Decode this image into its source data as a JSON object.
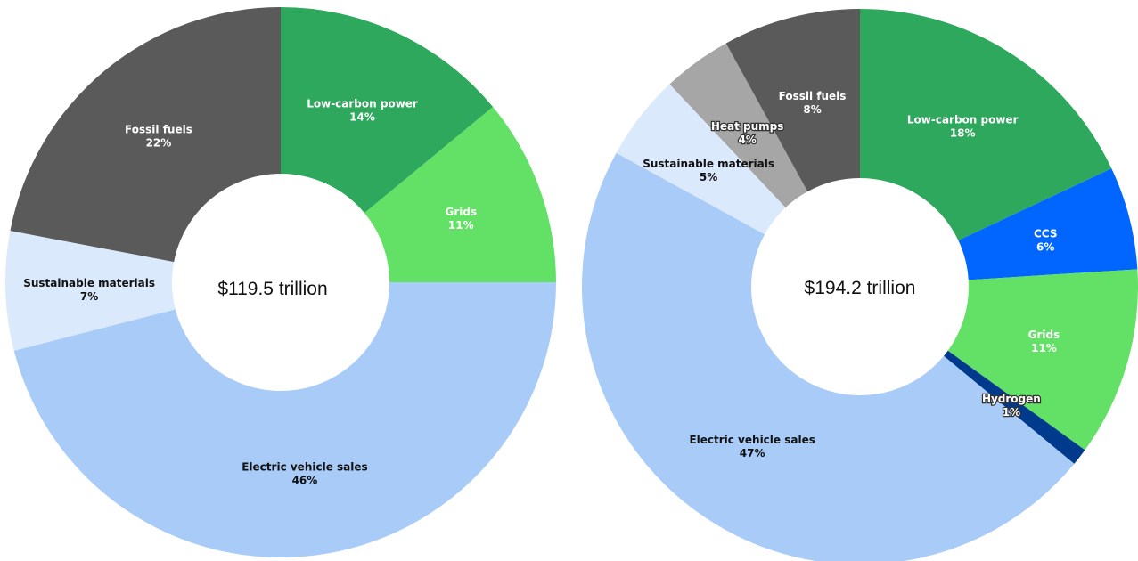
{
  "chart_data": [
    {
      "type": "pie",
      "center_label": "$119.5 trillion",
      "slices": [
        {
          "label": "Low-carbon power",
          "value": 14,
          "display": "14%",
          "color": "#2ea85c",
          "text_color": "#ffffff"
        },
        {
          "label": "Grids",
          "value": 11,
          "display": "11%",
          "color": "#63e066",
          "text_color": "#ffffff"
        },
        {
          "label": "Electric vehicle sales",
          "value": 46,
          "display": "46%",
          "color": "#a8cbf7",
          "text_color": "#111111"
        },
        {
          "label": "Sustainable materials",
          "value": 7,
          "display": "7%",
          "color": "#dbe9fd",
          "text_color": "#111111"
        },
        {
          "label": "Fossil fuels",
          "value": 22,
          "display": "22%",
          "color": "#5a5a5a",
          "text_color": "#ffffff"
        }
      ]
    },
    {
      "type": "pie",
      "center_label": "$194.2 trillion",
      "slices": [
        {
          "label": "Low-carbon power",
          "value": 18,
          "display": "18%",
          "color": "#2ea85c",
          "text_color": "#ffffff"
        },
        {
          "label": "CCS",
          "value": 6,
          "display": "6%",
          "color": "#0066ff",
          "text_color": "#ffffff"
        },
        {
          "label": "Grids",
          "value": 11,
          "display": "11%",
          "color": "#63e066",
          "text_color": "#ffffff"
        },
        {
          "label": "Hydrogen",
          "value": 1,
          "display": "1%",
          "color": "#003a8c",
          "text_color": "#ffffff",
          "outline": true
        },
        {
          "label": "Electric vehicle sales",
          "value": 47,
          "display": "47%",
          "color": "#a8cbf7",
          "text_color": "#111111"
        },
        {
          "label": "Sustainable materials",
          "value": 5,
          "display": "5%",
          "color": "#dbe9fd",
          "text_color": "#111111"
        },
        {
          "label": "Heat pumps",
          "value": 4,
          "display": "4%",
          "color": "#a6a6a6",
          "text_color": "#ffffff",
          "outline": true
        },
        {
          "label": "Fossil fuels",
          "value": 8,
          "display": "8%",
          "color": "#5a5a5a",
          "text_color": "#ffffff"
        }
      ]
    }
  ]
}
